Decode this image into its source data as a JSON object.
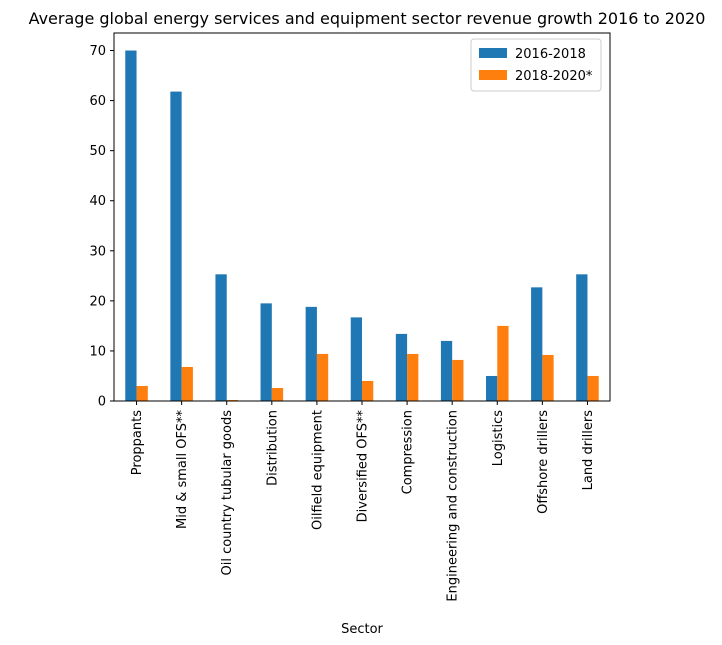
{
  "chart_data": {
    "type": "bar",
    "title": "Average global energy services and equipment sector revenue growth 2016 to 2020",
    "xlabel": "Sector",
    "ylabel": "",
    "ylim": [
      0,
      73.5
    ],
    "yticks": [
      0,
      10,
      20,
      30,
      40,
      50,
      60,
      70
    ],
    "categories": [
      "Proppants",
      "Mid & small OFS**",
      "Oil country tubular goods",
      "Distribution",
      "Oilfield equipment",
      "Diversified OFS**",
      "Compression",
      "Engineering and construction",
      "Logistics",
      "Offshore drillers",
      "Land drillers"
    ],
    "series": [
      {
        "name": "2016-2018",
        "color": "#1f77b4",
        "values": [
          70,
          61.8,
          25.3,
          19.5,
          18.8,
          16.7,
          13.4,
          12.0,
          5.0,
          22.7,
          25.3
        ]
      },
      {
        "name": "2018-2020*",
        "color": "#ff7f0e",
        "values": [
          3.0,
          6.8,
          0.2,
          2.6,
          9.4,
          4.0,
          9.4,
          8.2,
          15.0,
          9.2,
          5.0
        ]
      }
    ],
    "legend": "top-right",
    "grid": false
  }
}
